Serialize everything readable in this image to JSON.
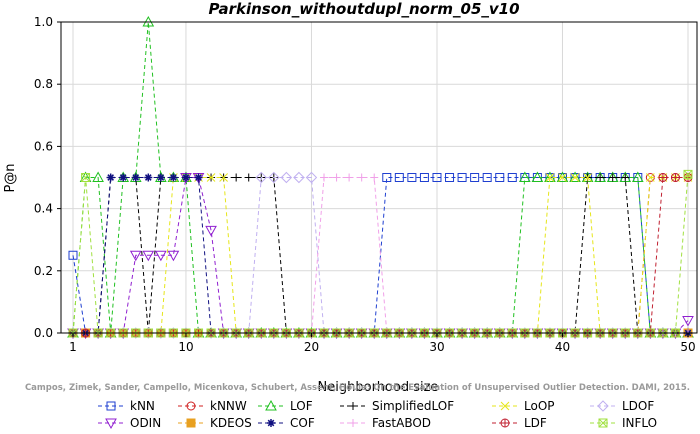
{
  "chart_data": {
    "type": "line",
    "title": "Parkinson_withoutdupl_norm_05_v10",
    "xlabel": "Neighborhood size",
    "ylabel": "P@n",
    "xlim": [
      1,
      50
    ],
    "ylim": [
      0,
      1
    ],
    "xticks": [
      "1",
      "10",
      "20",
      "30",
      "40",
      "50"
    ],
    "yticks": [
      "0.0",
      "0.2",
      "0.4",
      "0.6",
      "0.8",
      "1.0"
    ],
    "credit": "Campos, Zimek, Sander, Campello, Micenkova, Schubert, Assent, Houle: On the Evaluation of Unsupervised Outlier Detection. DAMI, 2015.",
    "series": [
      {
        "name": "kNN",
        "color": "#1f3fd0",
        "marker": "square",
        "values": [
          0.25,
          0,
          0,
          0,
          0,
          0,
          0,
          0,
          0,
          0,
          0,
          0,
          0,
          0,
          0,
          0,
          0,
          0,
          0,
          0,
          0,
          0,
          0,
          0,
          0,
          0.5,
          0.5,
          0.5,
          0.5,
          0.5,
          0.5,
          0.5,
          0.5,
          0.5,
          0.5,
          0.5,
          0.5,
          0.5,
          0.5,
          0.5,
          0.5,
          0.5,
          0.5,
          0.5,
          0.5,
          0.5,
          0,
          0,
          0,
          0
        ]
      },
      {
        "name": "kNNW",
        "color": "#d02020",
        "marker": "circle",
        "values": [
          0,
          0,
          0,
          0,
          0,
          0,
          0,
          0,
          0,
          0,
          0,
          0,
          0,
          0,
          0,
          0,
          0,
          0,
          0,
          0,
          0,
          0,
          0,
          0,
          0,
          0,
          0,
          0,
          0,
          0,
          0,
          0,
          0,
          0,
          0,
          0,
          0,
          0,
          0,
          0,
          0,
          0,
          0,
          0,
          0,
          0,
          0.5,
          0.5,
          0.5,
          0.5
        ]
      },
      {
        "name": "LOF",
        "color": "#20c020",
        "marker": "triangle",
        "values": [
          0,
          0.5,
          0.5,
          0,
          0.5,
          0.5,
          1.0,
          0.5,
          0.5,
          0.5,
          0,
          0,
          0,
          0,
          0,
          0,
          0,
          0,
          0,
          0,
          0,
          0,
          0,
          0,
          0,
          0,
          0,
          0,
          0,
          0,
          0,
          0,
          0,
          0,
          0,
          0,
          0.5,
          0.5,
          0.5,
          0.5,
          0.5,
          0.5,
          0.5,
          0.5,
          0.5,
          0.5,
          0,
          0,
          0,
          0
        ]
      },
      {
        "name": "SimplifiedLOF",
        "color": "#000000",
        "marker": "plus",
        "values": [
          0,
          0,
          0,
          0.5,
          0.5,
          0.5,
          0,
          0.5,
          0.5,
          0.5,
          0.5,
          0.5,
          0.5,
          0.5,
          0.5,
          0.5,
          0.5,
          0,
          0,
          0,
          0,
          0,
          0,
          0,
          0,
          0,
          0,
          0,
          0,
          0,
          0,
          0,
          0,
          0,
          0,
          0,
          0,
          0,
          0,
          0,
          0,
          0.5,
          0.5,
          0.5,
          0.5,
          0,
          0,
          0,
          0,
          0
        ]
      },
      {
        "name": "LoOP",
        "color": "#e6e61a",
        "marker": "x",
        "values": [
          0,
          0,
          0,
          0,
          0,
          0,
          0,
          0,
          0.5,
          0.5,
          0.5,
          0.5,
          0.5,
          0,
          0,
          0,
          0,
          0,
          0,
          0,
          0,
          0,
          0,
          0,
          0,
          0,
          0,
          0,
          0,
          0,
          0,
          0,
          0,
          0,
          0,
          0,
          0,
          0,
          0.5,
          0.5,
          0.5,
          0.5,
          0,
          0,
          0,
          0,
          0.5,
          0.5,
          0.5,
          0.5
        ]
      },
      {
        "name": "LDOF",
        "color": "#c0b0f0",
        "marker": "diamond",
        "values": [
          0,
          0,
          0,
          0,
          0,
          0,
          0,
          0,
          0,
          0,
          0,
          0,
          0,
          0,
          0,
          0.5,
          0.5,
          0.5,
          0.5,
          0.5,
          0,
          0,
          0,
          0,
          0,
          0,
          0,
          0,
          0,
          0,
          0,
          0,
          0,
          0,
          0,
          0,
          0,
          0,
          0,
          0,
          0,
          0,
          0,
          0,
          0,
          0,
          0,
          0,
          0,
          0
        ]
      },
      {
        "name": "ODIN",
        "color": "#9020d0",
        "marker": "triangle-down",
        "values": [
          0,
          0,
          0,
          0,
          0,
          0.25,
          0.25,
          0.25,
          0.25,
          0.5,
          0.5,
          0.33,
          0,
          0,
          0,
          0,
          0,
          0,
          0,
          0,
          0,
          0,
          0,
          0,
          0,
          0,
          0,
          0,
          0,
          0,
          0,
          0,
          0,
          0,
          0,
          0,
          0,
          0,
          0,
          0,
          0,
          0,
          0,
          0,
          0,
          0,
          0,
          0,
          0,
          0.04
        ]
      },
      {
        "name": "KDEOS",
        "color": "#e8a020",
        "marker": "square-filled",
        "values": [
          0,
          0,
          0,
          0,
          0,
          0,
          0,
          0,
          0,
          0,
          0,
          0,
          0,
          0,
          0,
          0,
          0,
          0,
          0,
          0,
          0,
          0,
          0,
          0,
          0,
          0,
          0,
          0,
          0,
          0,
          0,
          0,
          0,
          0,
          0,
          0,
          0,
          0,
          0,
          0,
          0,
          0,
          0,
          0,
          0,
          0,
          0,
          0,
          0,
          0
        ]
      },
      {
        "name": "COF",
        "color": "#101080",
        "marker": "asterisk",
        "values": [
          0,
          0,
          0,
          0.5,
          0.5,
          0.5,
          0.5,
          0.5,
          0.5,
          0.5,
          0.5,
          0,
          0,
          0,
          0,
          0,
          0,
          0,
          0,
          0,
          0,
          0,
          0,
          0,
          0,
          0,
          0,
          0,
          0,
          0,
          0,
          0,
          0,
          0,
          0,
          0,
          0,
          0,
          0,
          0,
          0,
          0,
          0,
          0,
          0,
          0,
          0,
          0,
          0,
          0
        ]
      },
      {
        "name": "FastABOD",
        "color": "#f0a0e8",
        "marker": "plus",
        "values": [
          0,
          0,
          0,
          0,
          0,
          0,
          0,
          0,
          0,
          0,
          0,
          0,
          0,
          0,
          0,
          0,
          0,
          0,
          0,
          0,
          0.5,
          0.5,
          0.5,
          0.5,
          0.5,
          0,
          0,
          0,
          0,
          0,
          0,
          0,
          0,
          0,
          0,
          0,
          0,
          0,
          0,
          0,
          0,
          0,
          0,
          0,
          0,
          0,
          0,
          0,
          0,
          0
        ]
      },
      {
        "name": "LDF",
        "color": "#c02030",
        "marker": "circle-plus",
        "values": [
          0,
          0,
          0,
          0,
          0,
          0,
          0,
          0,
          0,
          0,
          0,
          0,
          0,
          0,
          0,
          0,
          0,
          0,
          0,
          0,
          0,
          0,
          0,
          0,
          0,
          0,
          0,
          0,
          0,
          0,
          0,
          0,
          0,
          0,
          0,
          0,
          0,
          0,
          0,
          0,
          0,
          0,
          0,
          0,
          0,
          0,
          0,
          0.5,
          0.5,
          0.5
        ]
      },
      {
        "name": "INFLO",
        "color": "#a0e040",
        "marker": "square-x",
        "values": [
          0,
          0.5,
          0,
          0,
          0,
          0,
          0,
          0,
          0,
          0,
          0,
          0,
          0,
          0,
          0,
          0,
          0,
          0,
          0,
          0,
          0,
          0,
          0,
          0,
          0,
          0,
          0,
          0,
          0,
          0,
          0,
          0,
          0,
          0,
          0,
          0,
          0,
          0,
          0,
          0,
          0,
          0,
          0,
          0,
          0,
          0,
          0,
          0,
          0,
          0.51
        ]
      }
    ]
  }
}
